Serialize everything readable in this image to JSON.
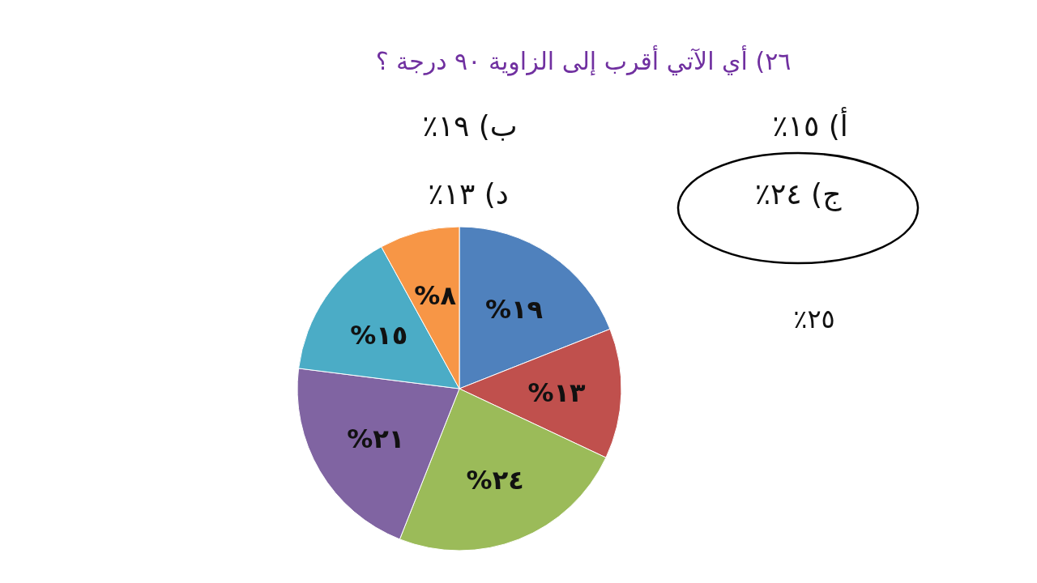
{
  "chart_data": {
    "type": "pie",
    "title": "٢٦)    أي الآتي أقرب إلى الزاوية ٩٠ درجة ؟",
    "categories": [
      null,
      null,
      null,
      null,
      null,
      null
    ],
    "values": [
      19,
      13,
      24,
      21,
      15,
      8
    ],
    "colors": [
      "#4f81bd",
      "#c0504d",
      "#9bbb59",
      "#8064a2",
      "#4bacc6",
      "#f79646"
    ],
    "value_labels": [
      "%١٩",
      "%١٣",
      "%٢٤",
      "%٢١",
      "%١٥",
      "%٨"
    ],
    "annotations": [
      "أ) ١٥٪",
      "ب) ١٩٪",
      "ج) ٢٤٪",
      "د) ١٣٪",
      "٢٥٪"
    ]
  }
}
